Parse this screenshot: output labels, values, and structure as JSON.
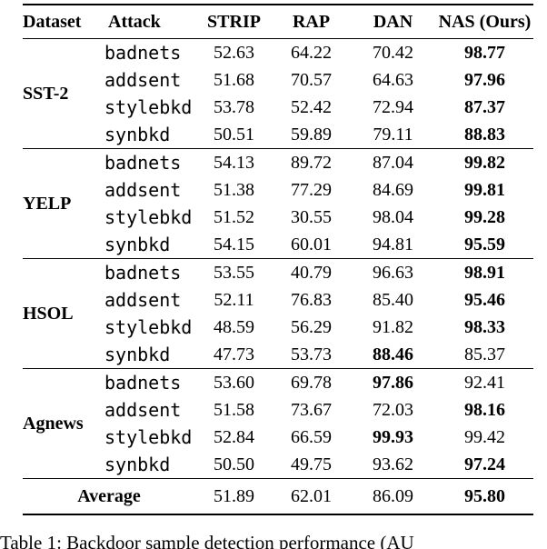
{
  "table": {
    "columns": [
      "Dataset",
      "Attack",
      "STRIP",
      "RAP",
      "DAN",
      "NAS (Ours)"
    ],
    "groups": [
      {
        "dataset": "SST-2",
        "rows": [
          {
            "attack": "badnets",
            "values": [
              "52.63",
              "64.22",
              "70.42",
              "98.77"
            ],
            "bold": 3
          },
          {
            "attack": "addsent",
            "values": [
              "51.68",
              "70.57",
              "64.63",
              "97.96"
            ],
            "bold": 3
          },
          {
            "attack": "stylebkd",
            "values": [
              "53.78",
              "52.42",
              "72.94",
              "87.37"
            ],
            "bold": 3
          },
          {
            "attack": "synbkd",
            "values": [
              "50.51",
              "59.89",
              "79.11",
              "88.83"
            ],
            "bold": 3
          }
        ]
      },
      {
        "dataset": "YELP",
        "rows": [
          {
            "attack": "badnets",
            "values": [
              "54.13",
              "89.72",
              "87.04",
              "99.82"
            ],
            "bold": 3
          },
          {
            "attack": "addsent",
            "values": [
              "51.38",
              "77.29",
              "84.69",
              "99.81"
            ],
            "bold": 3
          },
          {
            "attack": "stylebkd",
            "values": [
              "51.52",
              "30.55",
              "98.04",
              "99.28"
            ],
            "bold": 3
          },
          {
            "attack": "synbkd",
            "values": [
              "54.15",
              "60.01",
              "94.81",
              "95.59"
            ],
            "bold": 3
          }
        ]
      },
      {
        "dataset": "HSOL",
        "rows": [
          {
            "attack": "badnets",
            "values": [
              "53.55",
              "40.79",
              "96.63",
              "98.91"
            ],
            "bold": 3
          },
          {
            "attack": "addsent",
            "values": [
              "52.11",
              "76.83",
              "85.40",
              "95.46"
            ],
            "bold": 3
          },
          {
            "attack": "stylebkd",
            "values": [
              "48.59",
              "56.29",
              "91.82",
              "98.33"
            ],
            "bold": 3
          },
          {
            "attack": "synbkd",
            "values": [
              "47.73",
              "53.73",
              "88.46",
              "85.37"
            ],
            "bold": 2
          }
        ]
      },
      {
        "dataset": "Agnews",
        "rows": [
          {
            "attack": "badnets",
            "values": [
              "53.60",
              "69.78",
              "97.86",
              "92.41"
            ],
            "bold": 2
          },
          {
            "attack": "addsent",
            "values": [
              "51.58",
              "73.67",
              "72.03",
              "98.16"
            ],
            "bold": 3
          },
          {
            "attack": "stylebkd",
            "values": [
              "52.84",
              "66.59",
              "99.93",
              "99.42"
            ],
            "bold": 2
          },
          {
            "attack": "synbkd",
            "values": [
              "50.50",
              "49.75",
              "93.62",
              "97.24"
            ],
            "bold": 3
          }
        ]
      }
    ],
    "average": {
      "label": "Average",
      "values": [
        "51.89",
        "62.01",
        "86.09",
        "95.80"
      ],
      "bold": 3
    }
  },
  "caption": "Table 1: Backdoor sample detection performance (AU"
}
